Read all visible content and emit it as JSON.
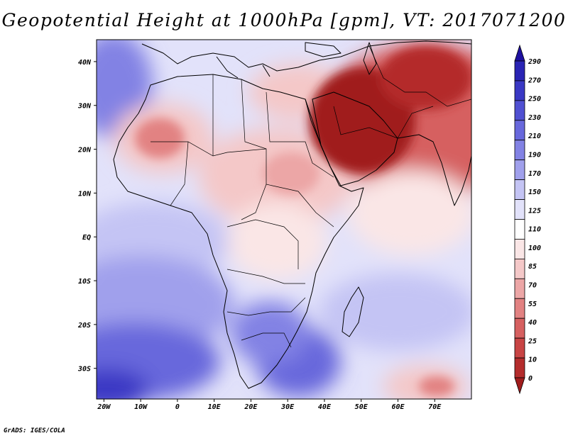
{
  "title": "Geopotential Height at 1000hPa [gpm], VT: 2017071200",
  "credit": "GrADS: IGES/COLA",
  "x_ticks": [
    "20W",
    "10W",
    "0",
    "10E",
    "20E",
    "30E",
    "40E",
    "50E",
    "60E",
    "70E"
  ],
  "y_ticks": [
    "40N",
    "30N",
    "20N",
    "10N",
    "EQ",
    "10S",
    "20S",
    "30S"
  ],
  "colorbar": {
    "levels": [
      "290",
      "270",
      "250",
      "230",
      "210",
      "190",
      "170",
      "150",
      "125",
      "110",
      "100",
      "85",
      "70",
      "55",
      "40",
      "25",
      "10",
      "0"
    ],
    "colors": [
      "#1e10a0",
      "#2a24b4",
      "#3a38c4",
      "#5050d2",
      "#6868dc",
      "#8282e4",
      "#a0a0ec",
      "#c4c4f4",
      "#e2e2fa",
      "#ffffff",
      "#fae6e6",
      "#f4c8c8",
      "#eca6a6",
      "#e28282",
      "#d66060",
      "#c84444",
      "#b42c2c",
      "#a01c1c"
    ]
  },
  "map": {
    "lon_range": [
      -22,
      80
    ],
    "lat_range": [
      -37,
      45
    ],
    "colors": {
      "coast": "#000000"
    }
  }
}
